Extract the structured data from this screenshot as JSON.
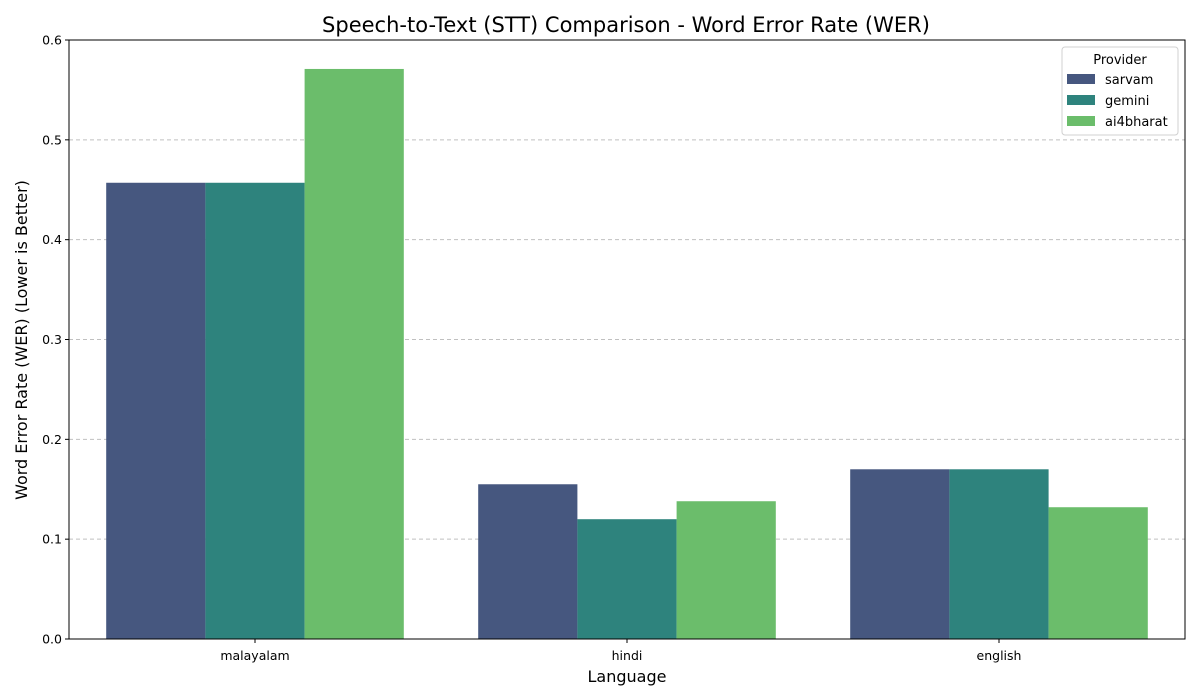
{
  "chart_data": {
    "type": "bar",
    "title": "Speech-to-Text (STT) Comparison - Word Error Rate (WER)",
    "xlabel": "Language",
    "ylabel": "Word Error Rate (WER) (Lower is Better)",
    "categories": [
      "malayalam",
      "hindi",
      "english"
    ],
    "series": [
      {
        "name": "sarvam",
        "color": "#46577f",
        "values": [
          0.457,
          0.155,
          0.17
        ]
      },
      {
        "name": "gemini",
        "color": "#2e837d",
        "values": [
          0.457,
          0.12,
          0.17
        ]
      },
      {
        "name": "ai4bharat",
        "color": "#6bbd6b",
        "values": [
          0.571,
          0.138,
          0.132
        ]
      }
    ],
    "ylim": [
      0,
      0.6
    ],
    "yticks": [
      "0.0",
      "0.1",
      "0.2",
      "0.3",
      "0.4",
      "0.5",
      "0.6"
    ],
    "grid": "y-dashed",
    "legend": {
      "title": "Provider",
      "placement": "top-right"
    }
  }
}
